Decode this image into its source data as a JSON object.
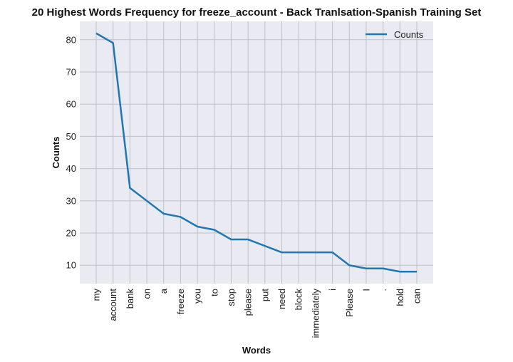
{
  "chart_data": {
    "type": "line",
    "title": "20 Highest Words Frequency for freeze_account - Back Tranlsation-Spanish Training Set",
    "xlabel": "Words",
    "ylabel": "Counts",
    "categories": [
      "my",
      "account",
      "bank",
      "on",
      "a",
      "freeze",
      "you",
      "to",
      "stop",
      "please",
      "put",
      "need",
      "block",
      "immediately",
      "i",
      "Please",
      "I",
      ".",
      "hold",
      "can"
    ],
    "series": [
      {
        "name": "Counts",
        "values": [
          82,
          79,
          34,
          30,
          26,
          25,
          22,
          21,
          18,
          18,
          16,
          14,
          14,
          14,
          14,
          10,
          9,
          9,
          8,
          8
        ]
      }
    ],
    "ylim": [
      4.3,
      85.7
    ],
    "yticks": [
      10,
      20,
      30,
      40,
      50,
      60,
      70,
      80
    ],
    "grid": true,
    "legend": "top-right",
    "colors": {
      "line": "#1f77b4",
      "plot_bg": "#eaeaf2",
      "grid": "#c0c0c8"
    }
  }
}
